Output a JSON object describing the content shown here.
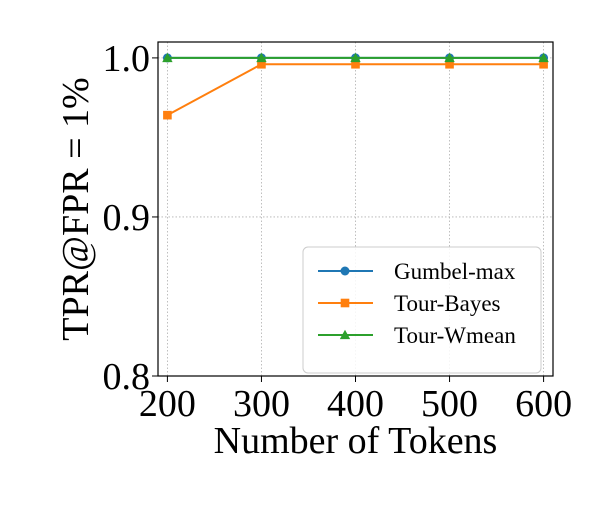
{
  "chart_data": {
    "type": "line",
    "title": "",
    "xlabel": "Number of Tokens",
    "ylabel": "TPR@FPR = 1%",
    "x": [
      200,
      300,
      400,
      500,
      600
    ],
    "xlim": [
      190,
      610
    ],
    "ylim": [
      0.8,
      1.01
    ],
    "xticks": [
      200,
      300,
      400,
      500,
      600
    ],
    "xtick_labels": [
      "200",
      "300",
      "400",
      "500",
      "600"
    ],
    "yticks": [
      0.8,
      0.9,
      1.0
    ],
    "ytick_labels": [
      "0.8",
      "0.9",
      "1.0"
    ],
    "grid": true,
    "legend_position": "lower-right",
    "series": [
      {
        "name": "Gumbel-max",
        "values": [
          1.0,
          1.0,
          1.0,
          1.0,
          1.0
        ],
        "color": "#1f77b4",
        "marker": "circle"
      },
      {
        "name": "Tour-Bayes",
        "values": [
          0.964,
          0.996,
          0.996,
          0.996,
          0.996
        ],
        "color": "#ff7f0e",
        "marker": "square"
      },
      {
        "name": "Tour-Wmean",
        "values": [
          1.0,
          1.0,
          1.0,
          1.0,
          1.0
        ],
        "color": "#2ca02c",
        "marker": "triangle"
      }
    ]
  }
}
